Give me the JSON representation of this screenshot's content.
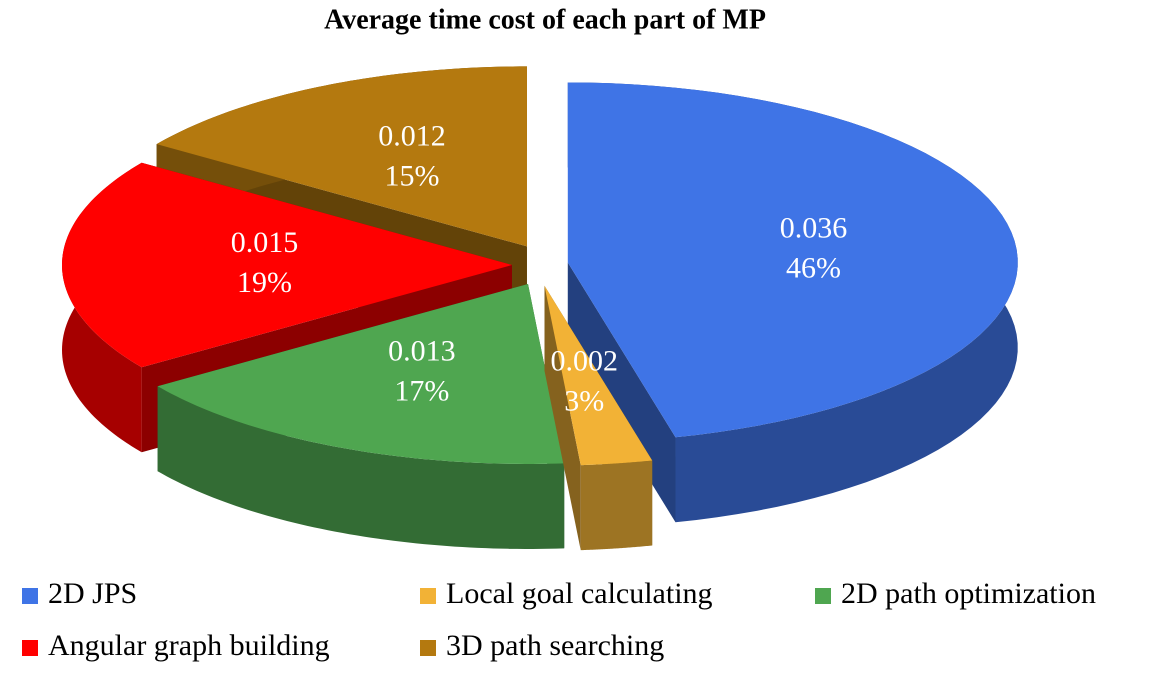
{
  "chart_data": {
    "type": "pie3d",
    "title": "Average time cost of each part of MP",
    "categories": [
      "2D JPS",
      "Local goal calculating",
      "2D path optimization",
      "Angular graph building",
      "3D path searching"
    ],
    "values": [
      0.036,
      0.002,
      0.013,
      0.015,
      0.012
    ],
    "percentages": [
      46,
      3,
      17,
      19,
      15
    ],
    "percentage_labels": [
      "46%",
      "3%",
      "17%",
      "19%",
      "15%"
    ],
    "colors": [
      "#3f74e6",
      "#f2b236",
      "#4fa650",
      "#ff0000",
      "#b4790f"
    ],
    "legend": "bottom"
  }
}
